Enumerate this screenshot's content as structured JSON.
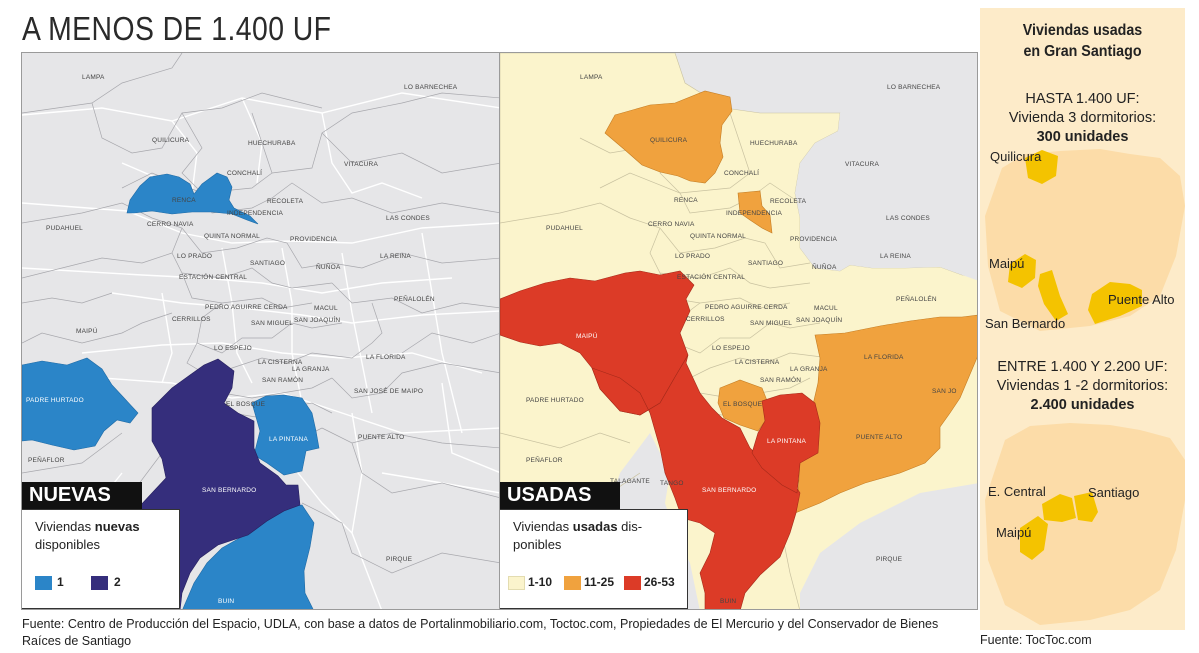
{
  "title": "A MENOS DE 1.400 UF",
  "communes": {
    "lampa": "LAMPA",
    "lo_barnechea": "LO BARNECHEA",
    "quilicura": "QUILICURA",
    "huechuraba": "HUECHURABA",
    "vitacura": "VITACURA",
    "conchali": "CONCHALÍ",
    "renca": "RENCA",
    "recoleta": "RECOLETA",
    "independencia": "INDEPENDENCIA",
    "las_condes": "LAS CONDES",
    "cerro_navia": "CERRO NAVIA",
    "pudahuel": "PUDAHUEL",
    "quinta_normal": "QUINTA NORMAL",
    "providencia": "PROVIDENCIA",
    "lo_prado": "LO PRADO",
    "la_reina": "LA REINA",
    "santiago": "SANTIAGO",
    "nunoa": "ÑUÑOA",
    "estacion_central": "ESTACIÓN CENTRAL",
    "penalolen": "PEÑALOLÉN",
    "pedro_aguirre_cerda": "PEDRO AGUIRRE CERDA",
    "macul": "MACUL",
    "cerrillos": "CERRILLOS",
    "san_joaquin": "SAN JOAQUÍN",
    "san_miguel": "SAN MIGUEL",
    "maipu": "MAIPÚ",
    "lo_espejo": "LO ESPEJO",
    "la_florida": "LA FLORIDA",
    "la_cisterna": "LA CISTERNA",
    "la_granja": "LA GRANJA",
    "san_ramon": "SAN RAMÓN",
    "padre_hurtado": "PADRE HURTADO",
    "el_bosque": "EL BOSQUE",
    "san_jose_de_maipo": "SAN JOSÉ DE MAIPO",
    "san_jose_short": "SAN JO",
    "la_pintana": "LA PINTANA",
    "puente_alto": "PUENTE ALTO",
    "penaflor": "PEÑAFLOR",
    "san_bernardo": "SAN BERNARDO",
    "talagante": "TALAGANTE",
    "tango": "TANGO",
    "pirque": "PIRQUE",
    "buin": "BUIN"
  },
  "left_map": {
    "tag": "NUEVAS",
    "legend_pre": "Viviendas ",
    "legend_bold": "nuevas",
    "legend_post": "disponibles",
    "items": [
      {
        "label": "1",
        "color": "#2b85c8"
      },
      {
        "label": "2",
        "color": "#352e7c"
      }
    ]
  },
  "right_map": {
    "tag": "USADAS",
    "legend_pre": "Viviendas ",
    "legend_bold": "usadas",
    "legend_post1": " dis-",
    "legend_post2": "ponibles",
    "items": [
      {
        "label": "1-10",
        "color": "#fbf4cc"
      },
      {
        "label": "11-25",
        "color": "#f0a23e"
      },
      {
        "label": "26-53",
        "color": "#dc3b27"
      }
    ]
  },
  "source": "Fuente: Centro de Producción del Espacio, UDLA, con base a datos de  Portalinmobiliario.com, Toctoc.com, Propiedades de El Mercurio y del Conservador de Bienes Raíces de Santiago",
  "sidebar": {
    "title_line1": "Viviendas usadas",
    "title_line2": "en Gran Santiago",
    "block1_line1": "HASTA 1.400 UF:",
    "block1_line2": "Vivienda 3 dormitorios:",
    "block1_line3": "300 unidades",
    "block1_labels": [
      "Quilicura",
      "Maipú",
      "San Bernardo",
      "Puente Alto"
    ],
    "block2_line1": "ENTRE 1.400 Y 2.200 UF:",
    "block2_line2": "Viviendas 1 -2 dormitorios:",
    "block2_line3": "2.400 unidades",
    "block2_labels": [
      "E. Central",
      "Santiago",
      "Maipú"
    ],
    "source": "Fuente: TocToc.com",
    "map_color": "#fcdca8",
    "highlight_color": "#f4c300"
  }
}
